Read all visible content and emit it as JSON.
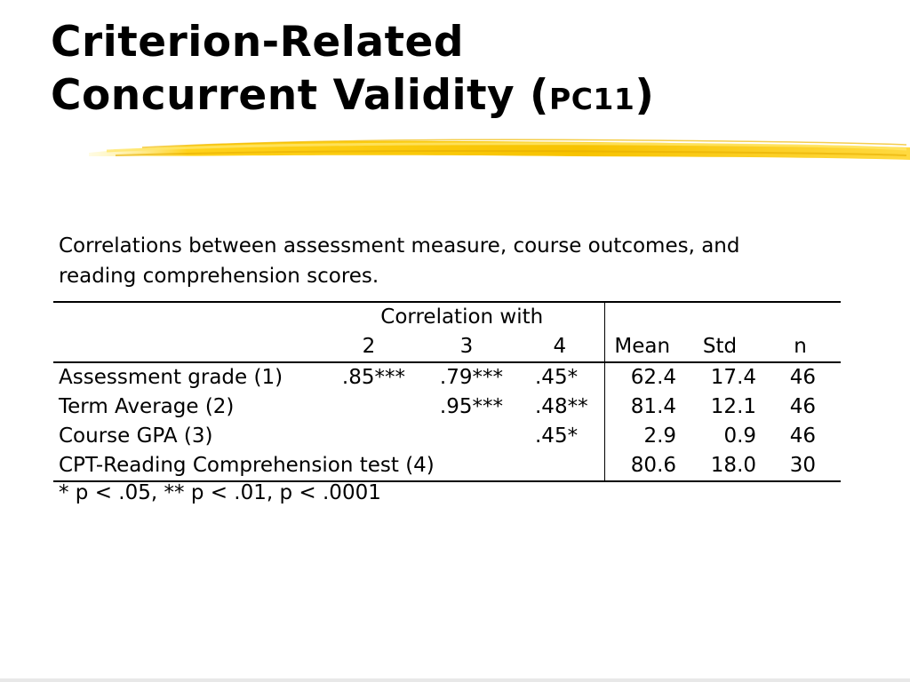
{
  "title": {
    "line1": "Criterion-Related",
    "line2_main": "Concurrent Validity (",
    "line2_small": "PC11",
    "line2_close": ")"
  },
  "caption": "Correlations between assessment measure, course outcomes, and reading comprehension scores.",
  "table": {
    "group_header": "Correlation with",
    "columns": [
      "2",
      "3",
      "4",
      "Mean",
      "Std",
      "n"
    ],
    "rows": [
      {
        "label": "Assessment grade (1)",
        "c2": ".85***",
        "c3": ".79***",
        "c4": ".45*",
        "mean": "62.4",
        "std": "17.4",
        "n": "46"
      },
      {
        "label": "Term Average (2)",
        "c2": "",
        "c3": ".95***",
        "c4": ".48**",
        "mean": "81.4",
        "std": "12.1",
        "n": "46"
      },
      {
        "label": "Course GPA (3)",
        "c2": "",
        "c3": "",
        "c4": ".45*",
        "mean": "2.9",
        "std": "0.9",
        "n": "46"
      },
      {
        "label": "CPT-Reading Comprehension test (4)",
        "c2": "",
        "c3": "",
        "c4": "",
        "mean": "80.6",
        "std": "18.0",
        "n": "30"
      }
    ]
  },
  "footnote": "* p < .05, ** p < .01, p < .0001",
  "colors": {
    "highlight": "#f5c400",
    "highlight_light": "#ffe45c",
    "text": "#000000"
  }
}
